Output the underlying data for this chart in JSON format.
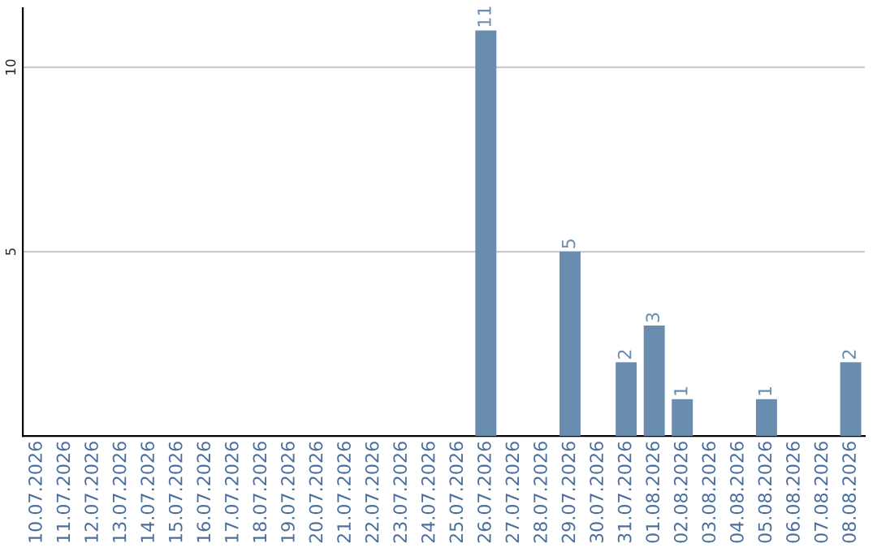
{
  "chart_data": {
    "type": "bar",
    "categories": [
      "10.07.2026",
      "11.07.2026",
      "12.07.2026",
      "13.07.2026",
      "14.07.2026",
      "15.07.2026",
      "16.07.2026",
      "17.07.2026",
      "18.07.2026",
      "19.07.2026",
      "20.07.2026",
      "21.07.2026",
      "22.07.2026",
      "23.07.2026",
      "24.07.2026",
      "25.07.2026",
      "26.07.2026",
      "27.07.2026",
      "28.07.2026",
      "29.07.2026",
      "30.07.2026",
      "31.07.2026",
      "01.08.2026",
      "02.08.2026",
      "03.08.2026",
      "04.08.2026",
      "05.08.2026",
      "06.08.2026",
      "07.08.2026",
      "08.08.2026"
    ],
    "values": [
      0,
      0,
      0,
      0,
      0,
      0,
      0,
      0,
      0,
      0,
      0,
      0,
      0,
      0,
      0,
      0,
      11,
      0,
      0,
      5,
      0,
      2,
      3,
      1,
      0,
      0,
      1,
      0,
      0,
      2
    ],
    "value_labels": [
      null,
      null,
      null,
      null,
      null,
      null,
      null,
      null,
      null,
      null,
      null,
      null,
      null,
      null,
      null,
      null,
      "11",
      null,
      null,
      "5",
      null,
      "2",
      "3",
      "1",
      null,
      null,
      "1",
      null,
      null,
      "2"
    ],
    "color": "#6a8caf",
    "ylim": [
      0,
      11.6
    ],
    "yticks": [
      5,
      10
    ],
    "grid": "y"
  }
}
